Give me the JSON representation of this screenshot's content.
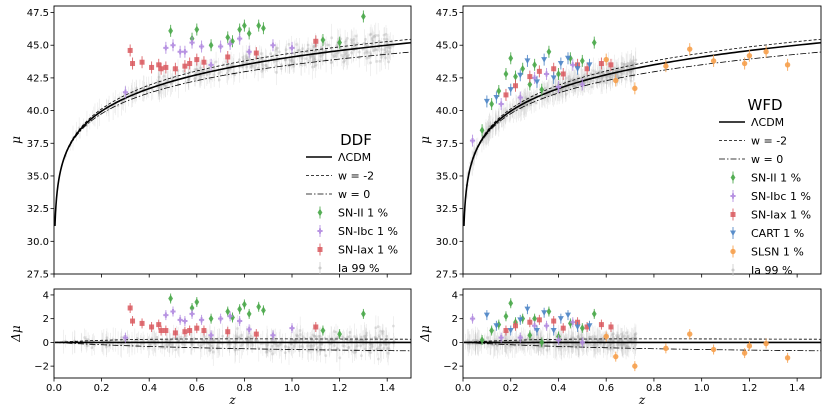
{
  "chart_data": [
    {
      "type": "scatter",
      "panel": "DDF-hubble",
      "legend_title": "DDF",
      "xlim": [
        0.0,
        1.5
      ],
      "ylim": [
        27.5,
        48.0
      ],
      "xticks": [
        "0.0",
        "0.2",
        "0.4",
        "0.6",
        "0.8",
        "1.0",
        "1.2",
        "1.4"
      ],
      "yticks": [
        "27.5",
        "30.0",
        "32.5",
        "35.0",
        "37.5",
        "40.0",
        "42.5",
        "45.0",
        "47.5"
      ],
      "xlabel": "",
      "ylabel": "μ",
      "legend_position": "center-right",
      "legend": [
        {
          "label": "ΛCDM",
          "kind": "solid"
        },
        {
          "label": "w = -2",
          "kind": "dashed"
        },
        {
          "label": "w = 0",
          "kind": "dashdot"
        },
        {
          "label": "SN-II 1 %",
          "kind": "diamond",
          "color": "#4aa84a"
        },
        {
          "label": "SN-Ibc 1 %",
          "kind": "cross",
          "color": "#b28ce0"
        },
        {
          "label": "SN-Iax 1 %",
          "kind": "square",
          "color": "#d9595f"
        },
        {
          "label": "Ia 99 %",
          "kind": "faint",
          "color": "#dddddd"
        }
      ],
      "series": [
        {
          "name": "SN-II 1 %",
          "color": "#4aa84a",
          "x": [
            0.49,
            0.58,
            0.6,
            0.66,
            0.73,
            0.75,
            0.78,
            0.8,
            0.82,
            0.86,
            0.88,
            1.13,
            1.2,
            1.3
          ],
          "y": [
            46.1,
            45.5,
            46.2,
            45.0,
            45.6,
            45.3,
            46.2,
            46.5,
            45.9,
            46.5,
            46.3,
            45.4,
            45.2,
            47.2
          ]
        },
        {
          "name": "SN-Ibc 1 %",
          "color": "#b28ce0",
          "x": [
            0.3,
            0.47,
            0.5,
            0.53,
            0.55,
            0.58,
            0.62,
            0.66,
            0.7,
            0.74,
            0.78,
            0.82,
            0.92,
            1.0
          ],
          "y": [
            41.4,
            44.8,
            45.0,
            44.5,
            44.5,
            45.2,
            44.9,
            43.5,
            44.9,
            45.1,
            45.5,
            44.5,
            45.0,
            44.8
          ]
        },
        {
          "name": "SN-Iax 1 %",
          "color": "#d9595f",
          "x": [
            0.32,
            0.33,
            0.37,
            0.41,
            0.44,
            0.45,
            0.47,
            0.51,
            0.55,
            0.57,
            0.6,
            0.63,
            0.73,
            0.85,
            1.1
          ],
          "y": [
            44.6,
            43.6,
            43.7,
            43.3,
            43.5,
            43.2,
            43.3,
            43.2,
            43.4,
            43.6,
            43.9,
            43.7,
            44.1,
            44.4,
            45.3
          ]
        }
      ],
      "curves": [
        {
          "name": "ΛCDM",
          "style": "solid"
        },
        {
          "name": "w = -2",
          "style": "dashed"
        },
        {
          "name": "w = 0",
          "style": "dashdot"
        }
      ]
    },
    {
      "type": "scatter",
      "panel": "WFD-hubble",
      "legend_title": "WFD",
      "xlim": [
        0.0,
        1.5
      ],
      "ylim": [
        27.5,
        48.0
      ],
      "xticks": [
        "0.0",
        "0.2",
        "0.4",
        "0.6",
        "0.8",
        "1.0",
        "1.2",
        "1.4"
      ],
      "yticks": [
        "27.5",
        "30.0",
        "32.5",
        "35.0",
        "37.5",
        "40.0",
        "42.5",
        "45.0",
        "47.5"
      ],
      "xlabel": "",
      "ylabel": "μ",
      "legend_position": "center-right",
      "legend": [
        {
          "label": "ΛCDM",
          "kind": "solid"
        },
        {
          "label": "w = -2",
          "kind": "dashed"
        },
        {
          "label": "w = 0",
          "kind": "dashdot"
        },
        {
          "label": "SN-II 1 %",
          "kind": "diamond",
          "color": "#4aa84a"
        },
        {
          "label": "SN-Ibc 1 %",
          "kind": "cross",
          "color": "#b28ce0"
        },
        {
          "label": "SN-Iax 1 %",
          "kind": "square",
          "color": "#d9595f"
        },
        {
          "label": "CART 1 %",
          "kind": "triangle",
          "color": "#4f86c6"
        },
        {
          "label": "SLSN 1 %",
          "kind": "circle",
          "color": "#f6a04d"
        },
        {
          "label": "Ia 99 %",
          "kind": "faint",
          "color": "#dddddd"
        }
      ],
      "series": [
        {
          "name": "SN-II 1 %",
          "color": "#4aa84a",
          "x": [
            0.08,
            0.12,
            0.15,
            0.18,
            0.2,
            0.22,
            0.25,
            0.28,
            0.3,
            0.33,
            0.36,
            0.4,
            0.45,
            0.5,
            0.55
          ],
          "y": [
            38.5,
            40.5,
            41.5,
            42.8,
            44.0,
            42.6,
            43.2,
            42.0,
            43.5,
            41.6,
            44.5,
            42.8,
            44.0,
            43.8,
            45.2
          ]
        },
        {
          "name": "SN-Ibc 1 %",
          "color": "#b28ce0",
          "x": [
            0.04,
            0.16,
            0.24,
            0.3,
            0.35,
            0.4,
            0.46,
            0.5
          ],
          "y": [
            37.7,
            40.5,
            41.0,
            42.5,
            42.8,
            41.8,
            43.5,
            42.0
          ]
        },
        {
          "name": "SN-Iax 1 %",
          "color": "#d9595f",
          "x": [
            0.18,
            0.22,
            0.28,
            0.32,
            0.38,
            0.42,
            0.48,
            0.52,
            0.58,
            0.62
          ],
          "y": [
            41.2,
            41.9,
            42.6,
            43.0,
            43.2,
            42.8,
            43.5,
            43.2,
            43.6,
            43.5
          ]
        },
        {
          "name": "CART 1 %",
          "color": "#4f86c6",
          "x": [
            0.1,
            0.14,
            0.2,
            0.24,
            0.27,
            0.31,
            0.34,
            0.38,
            0.41,
            0.44,
            0.48,
            0.53
          ],
          "y": [
            40.7,
            41.0,
            41.6,
            42.7,
            43.8,
            42.2,
            43.9,
            42.5,
            43.6,
            44.0,
            43.2,
            43.5
          ]
        },
        {
          "name": "SLSN 1 %",
          "color": "#f6a04d",
          "x": [
            0.6,
            0.64,
            0.72,
            0.85,
            0.95,
            1.05,
            1.18,
            1.2,
            1.27,
            1.36
          ],
          "y": [
            43.9,
            42.3,
            41.7,
            43.4,
            44.7,
            43.8,
            43.6,
            44.2,
            44.5,
            43.5
          ]
        }
      ],
      "curves": [
        {
          "name": "ΛCDM",
          "style": "solid"
        },
        {
          "name": "w = -2",
          "style": "dashed"
        },
        {
          "name": "w = 0",
          "style": "dashdot"
        }
      ]
    },
    {
      "type": "scatter",
      "panel": "DDF-residuals",
      "xlim": [
        0.0,
        1.5
      ],
      "ylim": [
        -3,
        4.5
      ],
      "xticks": [
        "0.0",
        "0.2",
        "0.4",
        "0.6",
        "0.8",
        "1.0",
        "1.2",
        "1.4"
      ],
      "yticks": [
        "−2",
        "0",
        "2",
        "4"
      ],
      "xlabel": "z",
      "ylabel": "Δμ",
      "series": [
        {
          "name": "SN-II 1 %",
          "color": "#4aa84a",
          "x": [
            0.49,
            0.58,
            0.6,
            0.66,
            0.73,
            0.75,
            0.78,
            0.8,
            0.82,
            0.86,
            0.88,
            1.13,
            1.2,
            1.3
          ],
          "y": [
            3.7,
            2.9,
            3.4,
            2.0,
            2.6,
            2.1,
            2.8,
            3.2,
            2.4,
            3.0,
            2.7,
            1.0,
            0.7,
            2.4
          ]
        },
        {
          "name": "SN-Ibc 1 %",
          "color": "#b28ce0",
          "x": [
            0.3,
            0.47,
            0.5,
            0.53,
            0.55,
            0.58,
            0.62,
            0.66,
            0.7,
            0.74,
            0.78,
            0.82,
            0.92,
            1.0
          ],
          "y": [
            0.4,
            2.3,
            2.6,
            1.9,
            1.8,
            2.4,
            1.9,
            0.6,
            2.0,
            2.2,
            1.8,
            1.1,
            0.6,
            1.2
          ]
        },
        {
          "name": "SN-Iax 1 %",
          "color": "#d9595f",
          "x": [
            0.32,
            0.33,
            0.37,
            0.41,
            0.44,
            0.45,
            0.47,
            0.51,
            0.55,
            0.57,
            0.6,
            0.63,
            0.73,
            0.85,
            1.1
          ],
          "y": [
            2.9,
            1.8,
            1.6,
            1.3,
            1.5,
            1.0,
            1.0,
            0.8,
            0.9,
            1.0,
            1.2,
            1.0,
            0.9,
            0.7,
            1.3
          ]
        }
      ],
      "curves": [
        {
          "name": "ΛCDM",
          "style": "solid"
        },
        {
          "name": "w = -2",
          "style": "dashed"
        },
        {
          "name": "w = 0",
          "style": "dashdot"
        }
      ]
    },
    {
      "type": "scatter",
      "panel": "WFD-residuals",
      "xlim": [
        0.0,
        1.5
      ],
      "ylim": [
        -3,
        4.5
      ],
      "xticks": [
        "0.0",
        "0.2",
        "0.4",
        "0.6",
        "0.8",
        "1.0",
        "1.2",
        "1.4"
      ],
      "yticks": [
        "−2",
        "0",
        "2",
        "4"
      ],
      "xlabel": "z",
      "ylabel": "Δμ",
      "series": [
        {
          "name": "SN-II 1 %",
          "color": "#4aa84a",
          "x": [
            0.08,
            0.12,
            0.15,
            0.18,
            0.2,
            0.22,
            0.25,
            0.28,
            0.3,
            0.33,
            0.36,
            0.4,
            0.45,
            0.5,
            0.55
          ],
          "y": [
            0.2,
            1.0,
            1.5,
            2.2,
            3.3,
            1.7,
            2.0,
            0.6,
            2.0,
            0.0,
            2.6,
            0.5,
            1.6,
            1.2,
            2.4
          ]
        },
        {
          "name": "SN-Ibc 1 %",
          "color": "#b28ce0",
          "x": [
            0.04,
            0.16,
            0.24,
            0.3,
            0.35,
            0.4,
            0.46,
            0.5
          ],
          "y": [
            2.0,
            0.4,
            0.4,
            1.4,
            1.4,
            0.2,
            1.7,
            0.0
          ]
        },
        {
          "name": "SN-Iax 1 %",
          "color": "#d9595f",
          "x": [
            0.18,
            0.22,
            0.28,
            0.32,
            0.38,
            0.42,
            0.48,
            0.52,
            0.58,
            0.62
          ],
          "y": [
            1.0,
            1.4,
            1.7,
            1.9,
            1.8,
            1.2,
            1.7,
            1.3,
            1.5,
            1.3
          ]
        },
        {
          "name": "CART 1 %",
          "color": "#4f86c6",
          "x": [
            0.1,
            0.14,
            0.2,
            0.24,
            0.27,
            0.31,
            0.34,
            0.38,
            0.41,
            0.44,
            0.48,
            0.53
          ],
          "y": [
            2.3,
            1.4,
            1.0,
            1.9,
            2.8,
            1.0,
            2.5,
            1.0,
            2.0,
            2.3,
            1.3,
            1.4
          ]
        },
        {
          "name": "SLSN 1 %",
          "color": "#f6a04d",
          "x": [
            0.6,
            0.64,
            0.72,
            0.85,
            0.95,
            1.05,
            1.18,
            1.2,
            1.27,
            1.36
          ],
          "y": [
            0.5,
            -1.2,
            -2.0,
            -0.5,
            0.7,
            -0.6,
            -0.9,
            -0.3,
            -0.1,
            -1.3
          ]
        }
      ],
      "curves": [
        {
          "name": "ΛCDM",
          "style": "solid"
        },
        {
          "name": "w = -2",
          "style": "dashed"
        },
        {
          "name": "w = 0",
          "style": "dashdot"
        }
      ]
    }
  ]
}
